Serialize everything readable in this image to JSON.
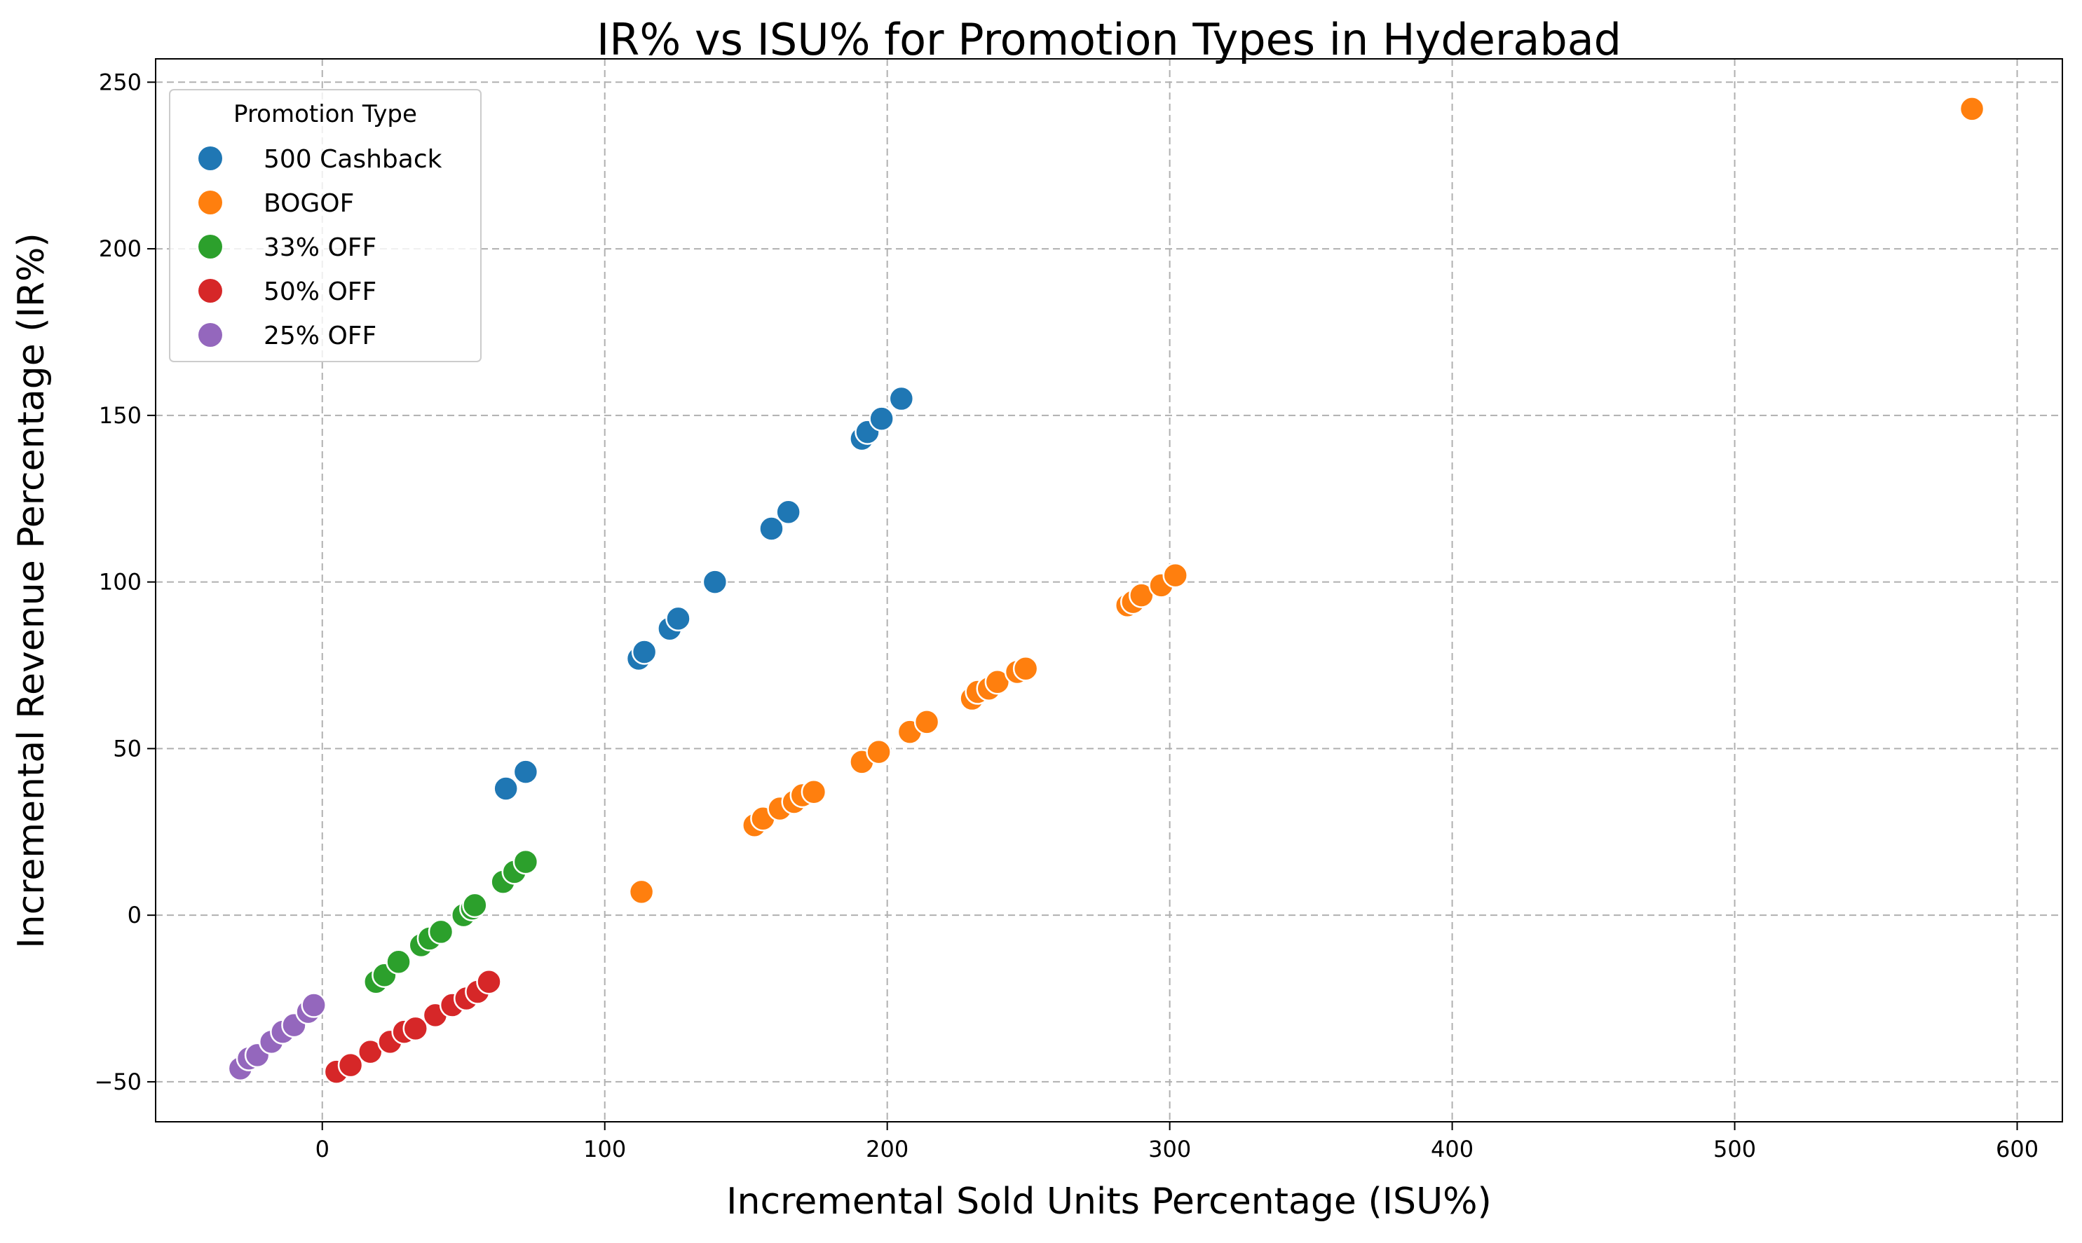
{
  "chart_data": {
    "type": "scatter",
    "title": "IR% vs ISU% for Promotion Types in Hyderabad",
    "xlabel": "Incremental Sold Units Percentage (ISU%)",
    "ylabel": "Incremental Revenue Percentage (IR%)",
    "xlim": [
      -59,
      616
    ],
    "ylim": [
      -62,
      257
    ],
    "xticks": [
      0,
      100,
      200,
      300,
      400,
      500,
      600
    ],
    "yticks": [
      -50,
      0,
      50,
      100,
      150,
      200,
      250
    ],
    "xtick_labels": [
      "0",
      "100",
      "200",
      "300",
      "400",
      "500",
      "600"
    ],
    "ytick_labels": [
      "−50",
      "0",
      "50",
      "100",
      "150",
      "200",
      "250"
    ],
    "grid": true,
    "legend": {
      "title": "Promotion Type",
      "placement": "top-left"
    },
    "series": [
      {
        "name": "500 Cashback",
        "color": "#1f77b4",
        "points": [
          [
            65,
            38
          ],
          [
            72,
            43
          ],
          [
            112,
            77
          ],
          [
            114,
            79
          ],
          [
            123,
            86
          ],
          [
            126,
            89
          ],
          [
            139,
            100
          ],
          [
            159,
            116
          ],
          [
            165,
            121
          ],
          [
            191,
            143
          ],
          [
            193,
            145
          ],
          [
            198,
            149
          ],
          [
            205,
            155
          ]
        ]
      },
      {
        "name": "BOGOF",
        "color": "#ff7f0e",
        "points": [
          [
            113,
            7
          ],
          [
            153,
            27
          ],
          [
            156,
            29
          ],
          [
            162,
            32
          ],
          [
            167,
            34
          ],
          [
            170,
            36
          ],
          [
            174,
            37
          ],
          [
            191,
            46
          ],
          [
            197,
            49
          ],
          [
            208,
            55
          ],
          [
            214,
            58
          ],
          [
            230,
            65
          ],
          [
            232,
            67
          ],
          [
            236,
            68
          ],
          [
            239,
            70
          ],
          [
            246,
            73
          ],
          [
            249,
            74
          ],
          [
            285,
            93
          ],
          [
            287,
            94
          ],
          [
            290,
            96
          ],
          [
            297,
            99
          ],
          [
            302,
            102
          ],
          [
            584,
            242
          ]
        ]
      },
      {
        "name": "33% OFF",
        "color": "#2ca02c",
        "points": [
          [
            19,
            -20
          ],
          [
            22,
            -18
          ],
          [
            27,
            -14
          ],
          [
            35,
            -9
          ],
          [
            38,
            -7
          ],
          [
            42,
            -5
          ],
          [
            50,
            0
          ],
          [
            53,
            2
          ],
          [
            54,
            3
          ],
          [
            64,
            10
          ],
          [
            68,
            13
          ],
          [
            72,
            16
          ]
        ]
      },
      {
        "name": "50% OFF",
        "color": "#d62728",
        "points": [
          [
            5,
            -47
          ],
          [
            10,
            -45
          ],
          [
            17,
            -41
          ],
          [
            24,
            -38
          ],
          [
            29,
            -35
          ],
          [
            33,
            -34
          ],
          [
            40,
            -30
          ],
          [
            46,
            -27
          ],
          [
            51,
            -25
          ],
          [
            55,
            -23
          ],
          [
            59,
            -20
          ]
        ]
      },
      {
        "name": "25% OFF",
        "color": "#9467bd",
        "points": [
          [
            -29,
            -46
          ],
          [
            -26,
            -43
          ],
          [
            -23,
            -42
          ],
          [
            -18,
            -38
          ],
          [
            -14,
            -35
          ],
          [
            -10,
            -33
          ],
          [
            -5,
            -29
          ],
          [
            -3,
            -27
          ]
        ]
      }
    ]
  }
}
